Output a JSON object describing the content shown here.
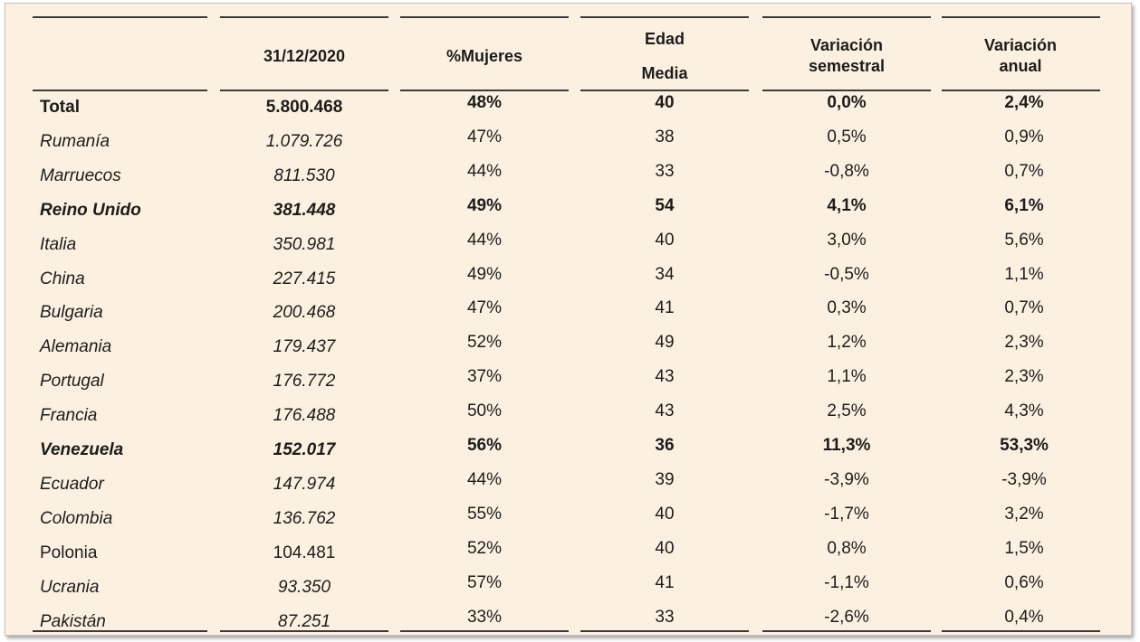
{
  "table": {
    "headers": {
      "date": "31/12/2020",
      "mujeres": "%Mujeres",
      "edad_1": "Edad",
      "edad_2": "Media",
      "var_sem_1": "Variación",
      "var_sem_2": "semestral",
      "var_anual_1": "Variación",
      "var_anual_2": "anual"
    },
    "rows": [
      {
        "country": "Total",
        "value": "5.800.468",
        "mujeres": "48%",
        "edad": "40",
        "var_sem": "0,0%",
        "var_anual": "2,4%",
        "style": "bold"
      },
      {
        "country": "Rumanía",
        "value": "1.079.726",
        "mujeres": "47%",
        "edad": "38",
        "var_sem": "0,5%",
        "var_anual": "0,9%",
        "style": "italic"
      },
      {
        "country": "Marruecos",
        "value": "811.530",
        "mujeres": "44%",
        "edad": "33",
        "var_sem": "-0,8%",
        "var_anual": "0,7%",
        "style": "italic"
      },
      {
        "country": "Reino Unido",
        "value": "381.448",
        "mujeres": "49%",
        "edad": "54",
        "var_sem": "4,1%",
        "var_anual": "6,1%",
        "style": "bold-italic"
      },
      {
        "country": "Italia",
        "value": "350.981",
        "mujeres": "44%",
        "edad": "40",
        "var_sem": "3,0%",
        "var_anual": "5,6%",
        "style": "italic"
      },
      {
        "country": "China",
        "value": "227.415",
        "mujeres": "49%",
        "edad": "34",
        "var_sem": "-0,5%",
        "var_anual": "1,1%",
        "style": "italic"
      },
      {
        "country": "Bulgaria",
        "value": "200.468",
        "mujeres": "47%",
        "edad": "41",
        "var_sem": "0,3%",
        "var_anual": "0,7%",
        "style": "italic"
      },
      {
        "country": "Alemania",
        "value": "179.437",
        "mujeres": "52%",
        "edad": "49",
        "var_sem": "1,2%",
        "var_anual": "2,3%",
        "style": "italic"
      },
      {
        "country": "Portugal",
        "value": "176.772",
        "mujeres": "37%",
        "edad": "43",
        "var_sem": "1,1%",
        "var_anual": "2,3%",
        "style": "italic"
      },
      {
        "country": "Francia",
        "value": "176.488",
        "mujeres": "50%",
        "edad": "43",
        "var_sem": "2,5%",
        "var_anual": "4,3%",
        "style": "italic"
      },
      {
        "country": "Venezuela",
        "value": "152.017",
        "mujeres": "56%",
        "edad": "36",
        "var_sem": "11,3%",
        "var_anual": "53,3%",
        "style": "bold-italic"
      },
      {
        "country": "Ecuador",
        "value": "147.974",
        "mujeres": "44%",
        "edad": "39",
        "var_sem": "-3,9%",
        "var_anual": "-3,9%",
        "style": "italic"
      },
      {
        "country": "Colombia",
        "value": "136.762",
        "mujeres": "55%",
        "edad": "40",
        "var_sem": "-1,7%",
        "var_anual": "3,2%",
        "style": "italic"
      },
      {
        "country": "Polonia",
        "value": "104.481",
        "mujeres": "52%",
        "edad": "40",
        "var_sem": "0,8%",
        "var_anual": "1,5%",
        "style": "normal"
      },
      {
        "country": "Ucrania",
        "value": "93.350",
        "mujeres": "57%",
        "edad": "41",
        "var_sem": "-1,1%",
        "var_anual": "0,6%",
        "style": "italic"
      },
      {
        "country": "Pakistán",
        "value": "87.251",
        "mujeres": "33%",
        "edad": "33",
        "var_sem": "-2,6%",
        "var_anual": "0,4%",
        "style": "italic"
      }
    ]
  }
}
